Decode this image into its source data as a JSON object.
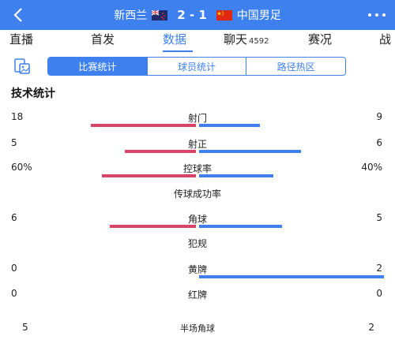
{
  "header": {
    "home_team": "新西兰",
    "away_team": "中国男足",
    "score": "2 - 1",
    "back_icon": "chevron-left-icon",
    "more_icon": "more-dots-icon",
    "bg_color": "#3d80ee"
  },
  "tabs": [
    {
      "label": "直播"
    },
    {
      "label": "首发"
    },
    {
      "label": "数据",
      "active": true
    },
    {
      "label": "聊天",
      "count": "4592"
    },
    {
      "label": "赛况"
    },
    {
      "label": "战"
    }
  ],
  "subtabs": [
    "比赛统计",
    "球员统计",
    "路径热区"
  ],
  "section_title": "技术统计",
  "stats": [
    {
      "label": "射门",
      "home": "18",
      "away": "9",
      "home_ratio": 0.67,
      "away_ratio": 0.33
    },
    {
      "label": "射正",
      "home": "5",
      "away": "6",
      "home_ratio": 0.45,
      "away_ratio": 0.55
    },
    {
      "label": "控球率",
      "home": "60%",
      "away": "40%",
      "home_ratio": 0.6,
      "away_ratio": 0.4
    },
    {
      "label": "传球成功率"
    },
    {
      "label": "角球",
      "home": "6",
      "away": "5",
      "home_ratio": 0.55,
      "away_ratio": 0.45
    },
    {
      "label": "犯规"
    },
    {
      "label": "黄牌",
      "home": "0",
      "away": "2",
      "home_ratio": 0.0,
      "away_ratio": 1.0
    },
    {
      "label": "红牌",
      "home": "0",
      "away": "0",
      "home_ratio": 0.0,
      "away_ratio": 0.0
    }
  ],
  "half_corner": {
    "label": "半场角球",
    "home": "5",
    "away": "2"
  },
  "colors": {
    "accent": "#3d80ee",
    "home_bar": "#d94466",
    "away_bar": "#3d80ee"
  }
}
